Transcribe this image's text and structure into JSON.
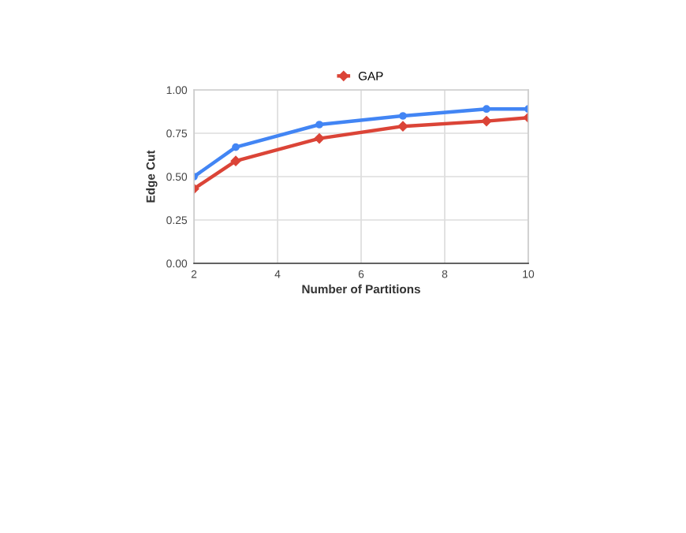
{
  "chart_data": {
    "type": "line",
    "xlabel": "Number of Partitions",
    "ylabel": "Edge Cut",
    "x": [
      2,
      3,
      5,
      7,
      9,
      10
    ],
    "series": [
      {
        "color": "#4285f4",
        "marker": "circle",
        "values": [
          0.5,
          0.67,
          0.8,
          0.85,
          0.89,
          0.89
        ]
      },
      {
        "name": "GAP",
        "color": "#db4437",
        "marker": "diamond",
        "values": [
          0.43,
          0.59,
          0.72,
          0.79,
          0.82,
          0.84
        ]
      }
    ],
    "xlim": [
      2,
      10
    ],
    "xticks": [
      2,
      4,
      6,
      8,
      10
    ],
    "ylim": [
      0,
      1
    ],
    "yticks": [
      {
        "value": 0,
        "label": "0.00"
      },
      {
        "value": 0.25,
        "label": "0.25"
      },
      {
        "value": 0.5,
        "label": "0.50"
      },
      {
        "value": 0.75,
        "label": "0.75"
      },
      {
        "value": 1,
        "label": "1.00"
      }
    ],
    "grid": true,
    "legend": "top",
    "line_style": "solid"
  }
}
